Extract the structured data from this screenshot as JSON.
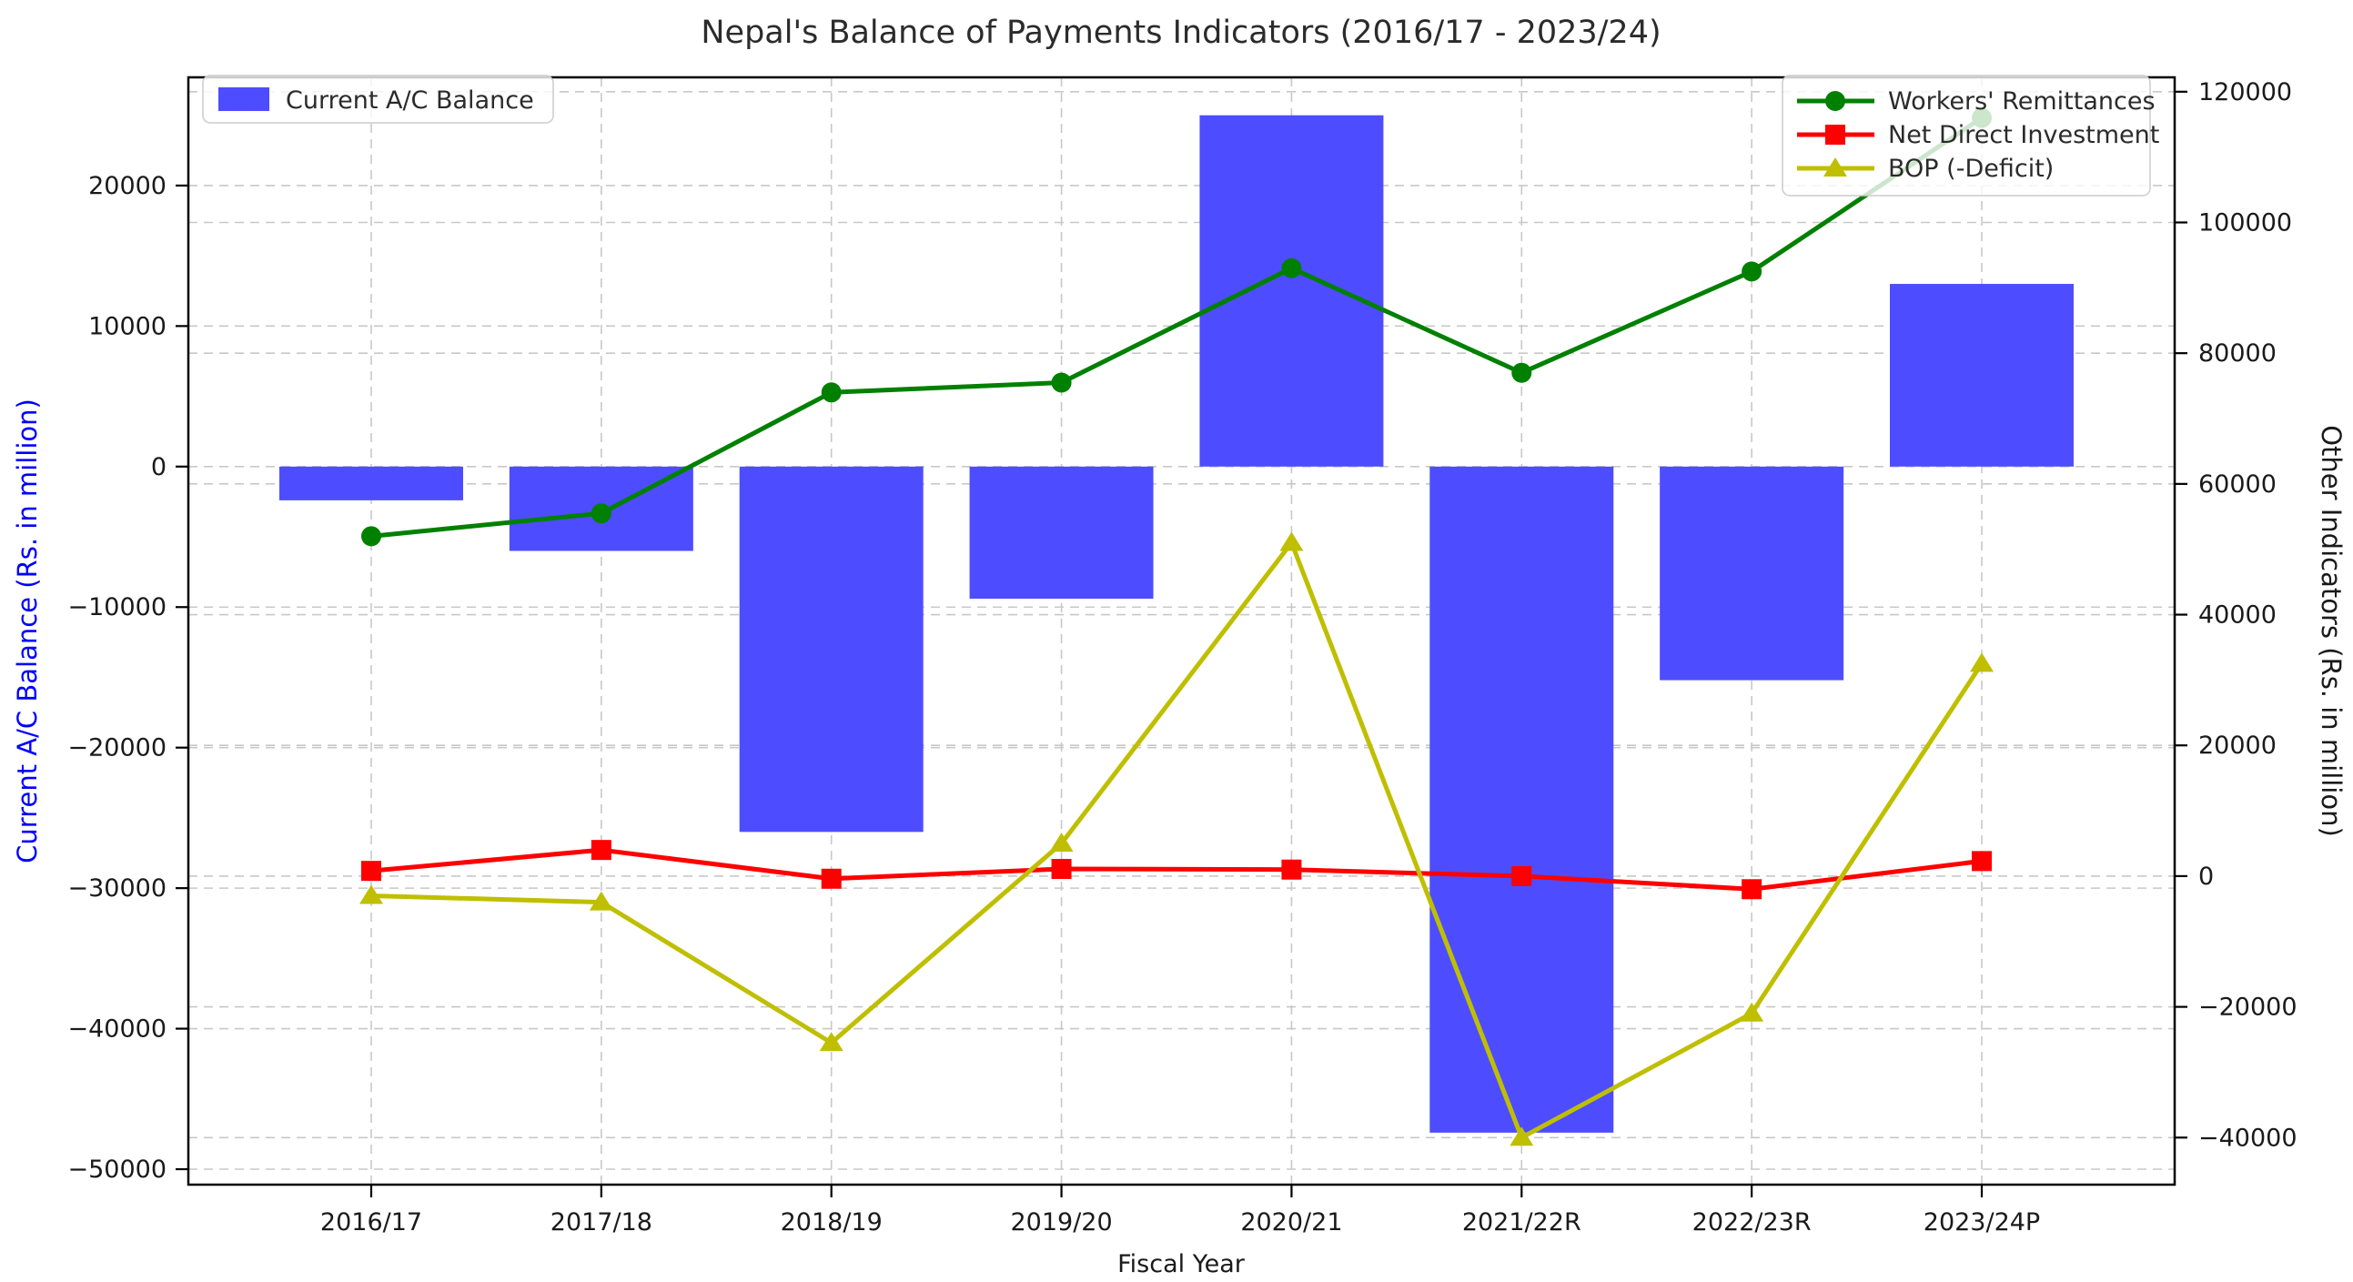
{
  "title": "Nepal's Balance of Payments Indicators (2016/17 - 2023/24)",
  "axes": {
    "x_label": "Fiscal Year",
    "y_left_label": "Current A/C Balance (Rs. in million)",
    "y_right_label": "Other Indicators (Rs. in million)",
    "y_left_tick_labels": [
      "20000",
      "10000",
      "0",
      "−10000",
      "−20000",
      "−30000",
      "−40000",
      "−50000"
    ],
    "y_right_tick_labels": [
      "120000",
      "100000",
      "80000",
      "60000",
      "40000",
      "20000",
      "0",
      "−20000",
      "−40000"
    ]
  },
  "legends": {
    "bar_legend_label": "Current A/C Balance",
    "line_legend_labels": [
      "Workers' Remittances",
      "Net Direct Investment",
      "BOP (-Deficit)"
    ]
  },
  "colors": {
    "bar": "#4D4DFF",
    "remittances": "#008000",
    "net_direct_investment": "#FF0000",
    "bop": "#BFBF00",
    "grid": "#c8c8c8",
    "left_axis_label": "#0000ff",
    "text": "#1a1a1a"
  },
  "chart_data": [
    {
      "type": "bar",
      "name": "Current A/C Balance",
      "axis": "left",
      "categories": [
        "2016/17",
        "2017/18",
        "2018/19",
        "2019/20",
        "2020/21",
        "2021/22R",
        "2022/23R",
        "2023/24P"
      ],
      "values": [
        -2400,
        -6000,
        -26000,
        -9400,
        25000,
        -47400,
        -15200,
        13000
      ],
      "color": "#4D4DFF",
      "ylabel": "Current A/C Balance (Rs. in million)",
      "ylim": [
        -51100,
        27700
      ],
      "yticks": [
        20000,
        10000,
        0,
        -10000,
        -20000,
        -30000,
        -40000,
        -50000
      ],
      "grid": true,
      "legend_position": "upper left"
    },
    {
      "type": "line",
      "axis": "right",
      "categories": [
        "2016/17",
        "2017/18",
        "2018/19",
        "2019/20",
        "2020/21",
        "2021/22R",
        "2022/23R",
        "2023/24P"
      ],
      "series": [
        {
          "name": "Workers' Remittances",
          "marker": "circle",
          "color": "#008000",
          "values": [
            52000,
            55500,
            74000,
            75500,
            93000,
            77000,
            92500,
            116000
          ]
        },
        {
          "name": "Net Direct Investment",
          "marker": "square",
          "color": "#FF0000",
          "values": [
            800,
            4000,
            -400,
            1100,
            1000,
            0,
            -2000,
            2300
          ]
        },
        {
          "name": "BOP (-Deficit)",
          "marker": "triangle",
          "color": "#BFBF00",
          "values": [
            -3000,
            -4000,
            -25500,
            5000,
            51000,
            -40000,
            -21000,
            32500
          ]
        }
      ],
      "ylabel": "Other Indicators (Rs. in million)",
      "ylim": [
        -47200,
        122200
      ],
      "yticks": [
        120000,
        100000,
        80000,
        60000,
        40000,
        20000,
        0,
        -20000,
        -40000
      ],
      "grid": true,
      "legend_position": "upper right"
    }
  ]
}
